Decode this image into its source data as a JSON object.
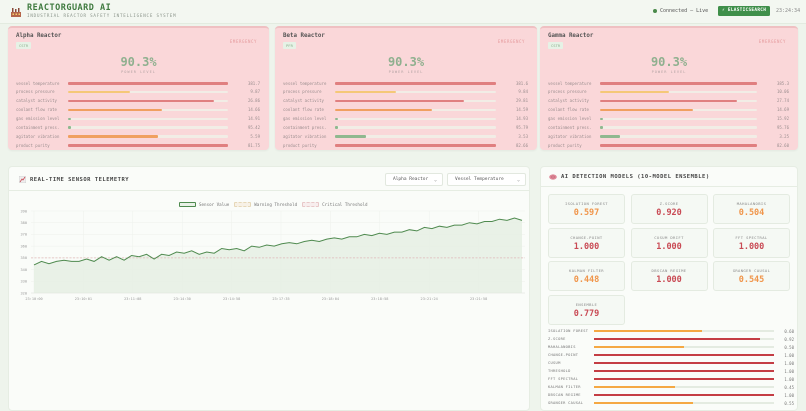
{
  "header": {
    "title": "REACTORGUARD AI",
    "subtitle": "INDUSTRIAL REACTOR SAFETY INTELLIGENCE SYSTEM",
    "connection": "Connected — Live",
    "backend_badge": "⚡ ELASTICSEARCH",
    "clock": "23:24:34"
  },
  "reactors": [
    {
      "name": "Alpha Reactor",
      "code": "CSTR",
      "status": "EMERGENCY",
      "power": "90.3%",
      "power_label": "POWER LEVEL",
      "metrics": [
        {
          "label": "vessel temperature",
          "value": "381.7",
          "pct": 100,
          "color": "#e07f80"
        },
        {
          "label": "process pressure",
          "value": "9.87",
          "pct": 39,
          "color": "#f5c878"
        },
        {
          "label": "catalyst activity",
          "value": "26.86",
          "pct": 91,
          "color": "#e07f80"
        },
        {
          "label": "coolant flow rate",
          "value": "14.66",
          "pct": 59,
          "color": "#f0a060"
        },
        {
          "label": "gas emission level",
          "value": "14.91",
          "pct": 2,
          "color": "#8fb88f"
        },
        {
          "label": "containment press.",
          "value": "95.42",
          "pct": 2,
          "color": "#8fb88f"
        },
        {
          "label": "agitator vibration",
          "value": "5.59",
          "pct": 56,
          "color": "#f0a060"
        },
        {
          "label": "product purity",
          "value": "81.75",
          "pct": 100,
          "color": "#e07f80"
        }
      ]
    },
    {
      "name": "Beta Reactor",
      "code": "PFR",
      "status": "EMERGENCY",
      "power": "90.3%",
      "power_label": "POWER LEVEL",
      "metrics": [
        {
          "label": "vessel temperature",
          "value": "381.6",
          "pct": 100,
          "color": "#e07f80"
        },
        {
          "label": "process pressure",
          "value": "9.84",
          "pct": 38,
          "color": "#f5c878"
        },
        {
          "label": "catalyst activity",
          "value": "29.81",
          "pct": 80,
          "color": "#e07f80"
        },
        {
          "label": "coolant flow rate",
          "value": "14.59",
          "pct": 60,
          "color": "#f0a060"
        },
        {
          "label": "gas emission level",
          "value": "14.93",
          "pct": 2,
          "color": "#8fb88f"
        },
        {
          "label": "containment press.",
          "value": "95.79",
          "pct": 2,
          "color": "#8fb88f"
        },
        {
          "label": "agitator vibration",
          "value": "3.53",
          "pct": 19,
          "color": "#8fb88f"
        },
        {
          "label": "product purity",
          "value": "82.66",
          "pct": 100,
          "color": "#e07f80"
        }
      ]
    },
    {
      "name": "Gamma Reactor",
      "code": "CSTR",
      "status": "EMERGENCY",
      "power": "90.3%",
      "power_label": "POWER LEVEL",
      "metrics": [
        {
          "label": "vessel temperature",
          "value": "385.3",
          "pct": 100,
          "color": "#e07f80"
        },
        {
          "label": "process pressure",
          "value": "10.06",
          "pct": 44,
          "color": "#f5c878"
        },
        {
          "label": "catalyst activity",
          "value": "27.74",
          "pct": 87,
          "color": "#e07f80"
        },
        {
          "label": "coolant flow rate",
          "value": "14.69",
          "pct": 59,
          "color": "#f0a060"
        },
        {
          "label": "gas emission level",
          "value": "15.92",
          "pct": 2,
          "color": "#8fb88f"
        },
        {
          "label": "containment press.",
          "value": "95.76",
          "pct": 2,
          "color": "#8fb88f"
        },
        {
          "label": "agitator vibration",
          "value": "3.25",
          "pct": 13,
          "color": "#8fb88f"
        },
        {
          "label": "product purity",
          "value": "82.60",
          "pct": 100,
          "color": "#e07f80"
        }
      ]
    }
  ],
  "telemetry": {
    "title": "REAL-TIME SENSOR TELEMETRY",
    "reactor_select": "Alpha Reactor",
    "sensor_select": "Vessel Temperature",
    "legend": [
      "Sensor Value",
      "Warning Threshold",
      "Critical Threshold"
    ]
  },
  "chart_data": {
    "type": "line",
    "title": "REAL-TIME SENSOR TELEMETRY",
    "series": [
      {
        "name": "Sensor Value",
        "color": "#4f8a4f",
        "values": [
          344,
          347,
          345,
          347,
          348,
          347,
          347,
          349,
          347,
          351,
          348,
          351,
          348,
          352,
          351,
          353,
          349,
          353,
          352,
          355,
          354,
          356,
          353,
          355,
          354,
          358,
          357,
          358,
          356,
          360,
          359,
          361,
          360,
          362,
          363,
          362,
          364,
          365,
          364,
          366,
          367,
          366,
          368,
          368,
          370,
          369,
          371,
          370,
          372,
          372,
          374,
          373,
          376,
          375,
          377,
          376,
          378,
          378,
          380,
          379,
          381,
          381,
          383,
          382,
          384,
          382
        ]
      },
      {
        "name": "Warning Threshold",
        "values": [
          350
        ]
      },
      {
        "name": "Critical Threshold",
        "values": [
          350
        ]
      }
    ],
    "x_ticks": [
      "23:10:00",
      "23:10:01",
      "23:11:08",
      "23:14:30",
      "23:14:58",
      "23:17:35",
      "23:18:04",
      "23:18:58",
      "23:21:24",
      "23:21:58"
    ],
    "y_ticks": [
      390,
      380,
      370,
      360,
      350,
      340,
      330,
      320
    ],
    "ylim": [
      320,
      390
    ],
    "grid": true,
    "legend_position": "top"
  },
  "ai": {
    "title": "AI DETECTION MODELS (10-MODEL ENSEMBLE)",
    "cards": [
      {
        "label": "ISOLATION FOREST",
        "value": "0.597",
        "color": "#f0954a"
      },
      {
        "label": "Z-SCORE",
        "value": "0.920",
        "color": "#c94b55"
      },
      {
        "label": "MAHALANOBIS",
        "value": "0.504",
        "color": "#f0954a"
      },
      {
        "label": "CHANGE-POINT",
        "value": "1.000",
        "color": "#c94b55"
      },
      {
        "label": "CUSUM DRIFT",
        "value": "1.000",
        "color": "#c94b55"
      },
      {
        "label": "FFT SPECTRAL",
        "value": "1.000",
        "color": "#c94b55"
      },
      {
        "label": "KALMAN FILTER",
        "value": "0.448",
        "color": "#f0954a"
      },
      {
        "label": "DBSCAN REGIME",
        "value": "1.000",
        "color": "#c94b55"
      },
      {
        "label": "GRANGER CAUSAL",
        "value": "0.545",
        "color": "#f0954a"
      },
      {
        "label": "ENSEMBLE",
        "value": "0.779",
        "color": "#c94b55"
      }
    ],
    "bars": [
      {
        "label": "ISOLATION FOREST",
        "value": "0.60",
        "pct": 60,
        "color": "#f5a843"
      },
      {
        "label": "Z-SCORE",
        "value": "0.92",
        "pct": 92,
        "color": "#c43d44"
      },
      {
        "label": "MAHALANOBIS",
        "value": "0.50",
        "pct": 50,
        "color": "#f5a843"
      },
      {
        "label": "CHANGE-POINT",
        "value": "1.00",
        "pct": 100,
        "color": "#c43d44"
      },
      {
        "label": "CUSUM",
        "value": "1.00",
        "pct": 100,
        "color": "#c43d44"
      },
      {
        "label": "THRESHOLD",
        "value": "1.00",
        "pct": 100,
        "color": "#c43d44"
      },
      {
        "label": "FFT SPECTRAL",
        "value": "1.00",
        "pct": 100,
        "color": "#c43d44"
      },
      {
        "label": "KALMAN FILTER",
        "value": "0.45",
        "pct": 45,
        "color": "#f5a843"
      },
      {
        "label": "DBSCAN REGIME",
        "value": "1.00",
        "pct": 100,
        "color": "#c43d44"
      },
      {
        "label": "GRANGER CAUSAL",
        "value": "0.55",
        "pct": 55,
        "color": "#f5a843"
      }
    ]
  }
}
